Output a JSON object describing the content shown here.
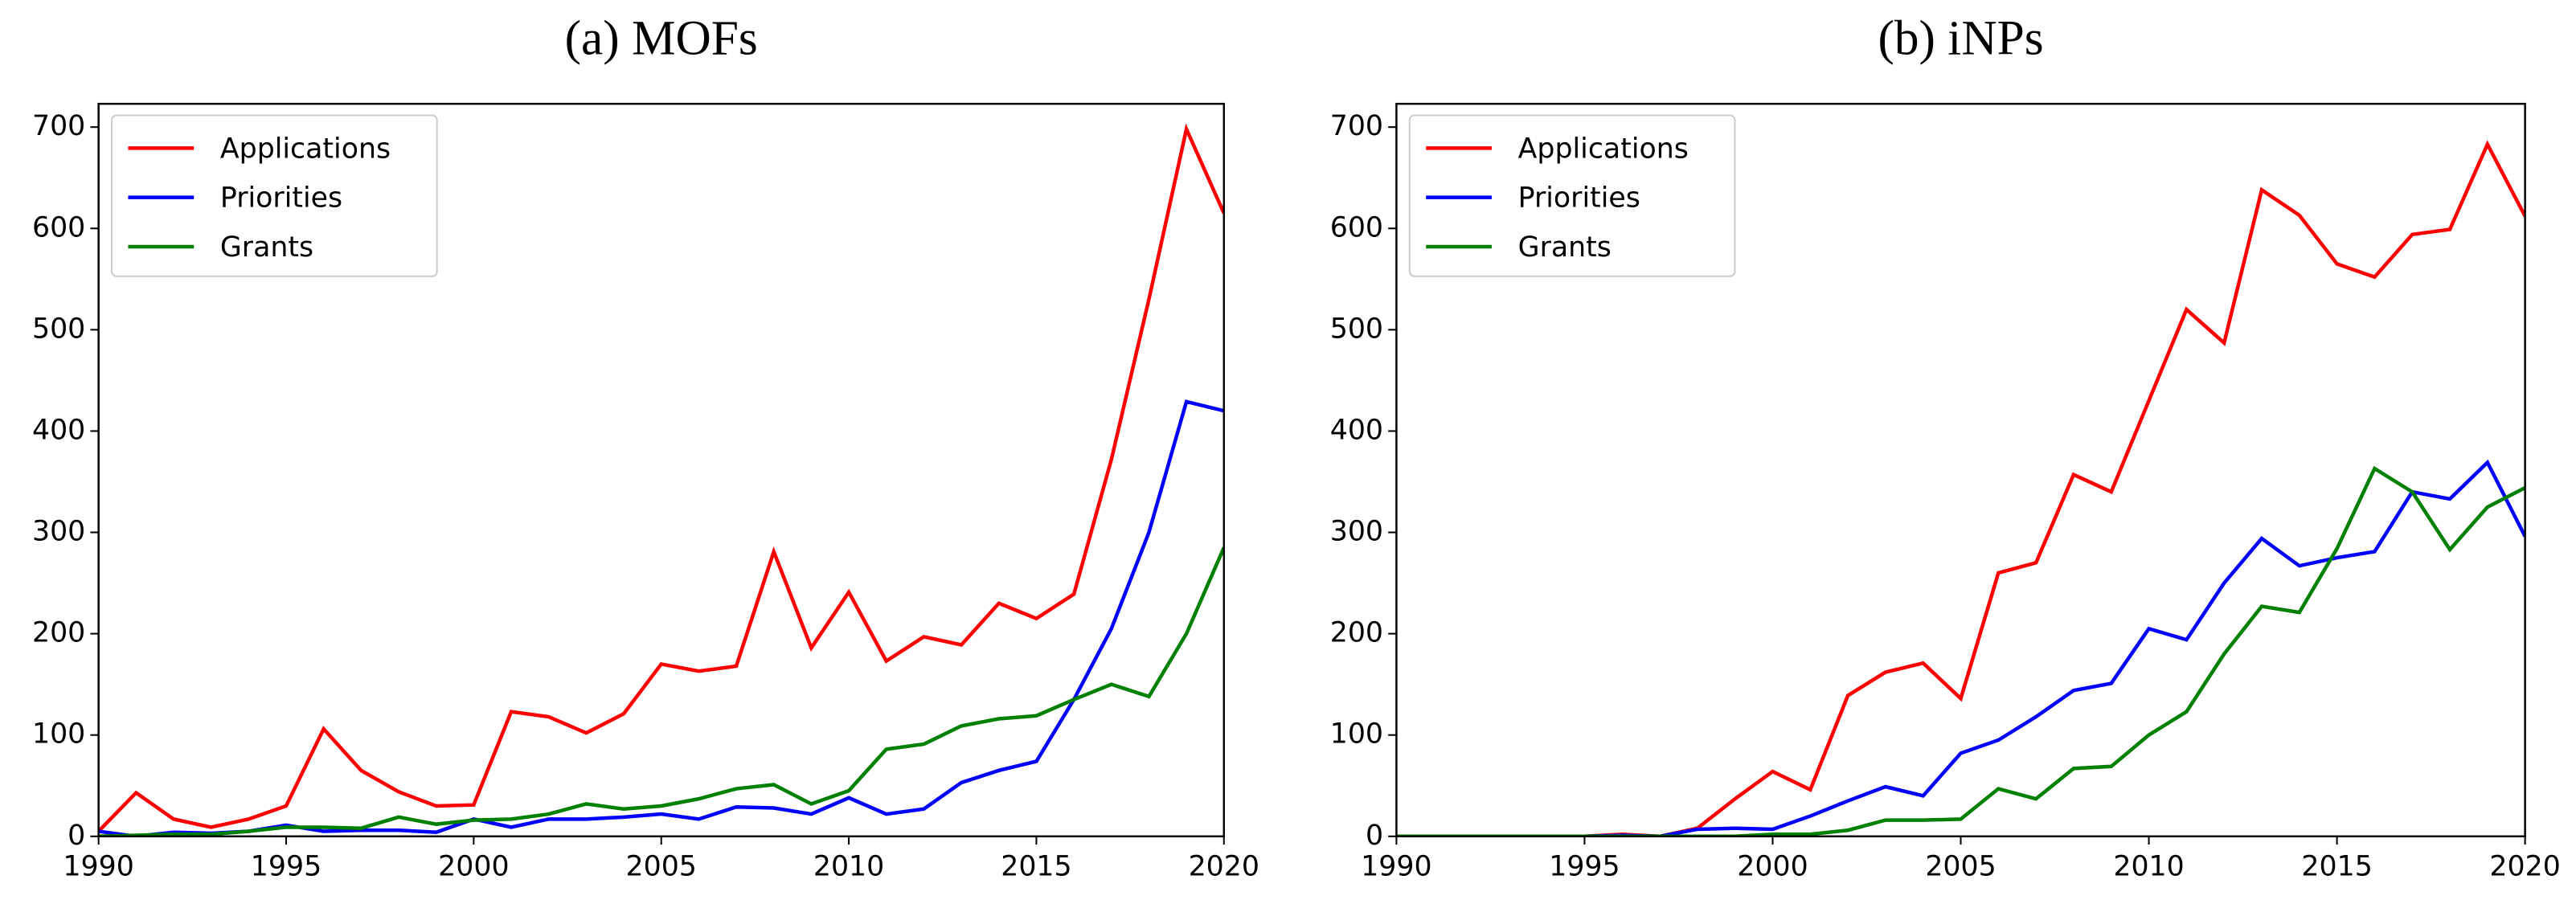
{
  "chart_data": [
    {
      "type": "line",
      "title": "(a) MOFs",
      "x": [
        1990,
        1991,
        1992,
        1993,
        1994,
        1995,
        1996,
        1997,
        1998,
        1999,
        2000,
        2001,
        2002,
        2003,
        2004,
        2005,
        2006,
        2007,
        2008,
        2009,
        2010,
        2011,
        2012,
        2013,
        2014,
        2015,
        2016,
        2017,
        2018,
        2019,
        2020
      ],
      "series": [
        {
          "name": "Applications",
          "color": "#ff0000",
          "values": [
            5,
            43,
            17,
            9,
            17,
            30,
            106,
            65,
            44,
            30,
            31,
            123,
            118,
            102,
            121,
            170,
            163,
            168,
            281,
            186,
            241,
            173,
            197,
            189,
            230,
            215,
            239,
            372,
            530,
            698,
            615
          ]
        },
        {
          "name": "Priorities",
          "color": "#0000ff",
          "values": [
            5,
            0,
            4,
            3,
            5,
            11,
            5,
            6,
            6,
            4,
            17,
            9,
            17,
            17,
            19,
            22,
            17,
            29,
            28,
            22,
            38,
            22,
            27,
            53,
            65,
            74,
            135,
            205,
            300,
            429,
            420
          ]
        },
        {
          "name": "Grants",
          "color": "#008000",
          "values": [
            0,
            1,
            2,
            2,
            5,
            9,
            9,
            8,
            19,
            12,
            16,
            17,
            22,
            32,
            27,
            30,
            37,
            47,
            51,
            32,
            45,
            86,
            91,
            109,
            116,
            119,
            135,
            150,
            138,
            200,
            285
          ]
        }
      ],
      "xlim": [
        1990,
        2020
      ],
      "xticks": [
        1990,
        1995,
        2000,
        2005,
        2010,
        2015,
        2020
      ],
      "ylim": [
        0,
        723
      ],
      "yticks": [
        0,
        100,
        200,
        300,
        400,
        500,
        600,
        700
      ],
      "legend": "upper left",
      "grid": false
    },
    {
      "type": "line",
      "title": "(b) iNPs",
      "x": [
        1990,
        1991,
        1992,
        1993,
        1994,
        1995,
        1996,
        1997,
        1998,
        1999,
        2000,
        2001,
        2002,
        2003,
        2004,
        2005,
        2006,
        2007,
        2008,
        2009,
        2010,
        2011,
        2012,
        2013,
        2014,
        2015,
        2016,
        2017,
        2018,
        2019,
        2020
      ],
      "series": [
        {
          "name": "Applications",
          "color": "#ff0000",
          "values": [
            0,
            0,
            0,
            0,
            0,
            0,
            2,
            0,
            8,
            37,
            64,
            46,
            139,
            162,
            171,
            136,
            260,
            270,
            357,
            340,
            430,
            520,
            487,
            638,
            613,
            565,
            552,
            594,
            599,
            683,
            612
          ]
        },
        {
          "name": "Priorities",
          "color": "#0000ff",
          "values": [
            0,
            0,
            0,
            0,
            0,
            0,
            1,
            0,
            7,
            8,
            7,
            20,
            35,
            49,
            40,
            82,
            95,
            118,
            144,
            151,
            205,
            194,
            250,
            294,
            267,
            275,
            281,
            340,
            333,
            369,
            296
          ]
        },
        {
          "name": "Grants",
          "color": "#008000",
          "values": [
            0,
            0,
            0,
            0,
            0,
            0,
            0,
            0,
            0,
            0,
            2,
            2,
            6,
            16,
            16,
            17,
            47,
            37,
            67,
            69,
            100,
            123,
            180,
            227,
            221,
            284,
            363,
            340,
            283,
            325,
            344
          ]
        }
      ],
      "xlim": [
        1990,
        2020
      ],
      "xticks": [
        1990,
        1995,
        2000,
        2005,
        2010,
        2015,
        2020
      ],
      "ylim": [
        0,
        723
      ],
      "yticks": [
        0,
        100,
        200,
        300,
        400,
        500,
        600,
        700
      ],
      "legend": "upper left",
      "grid": false
    }
  ]
}
